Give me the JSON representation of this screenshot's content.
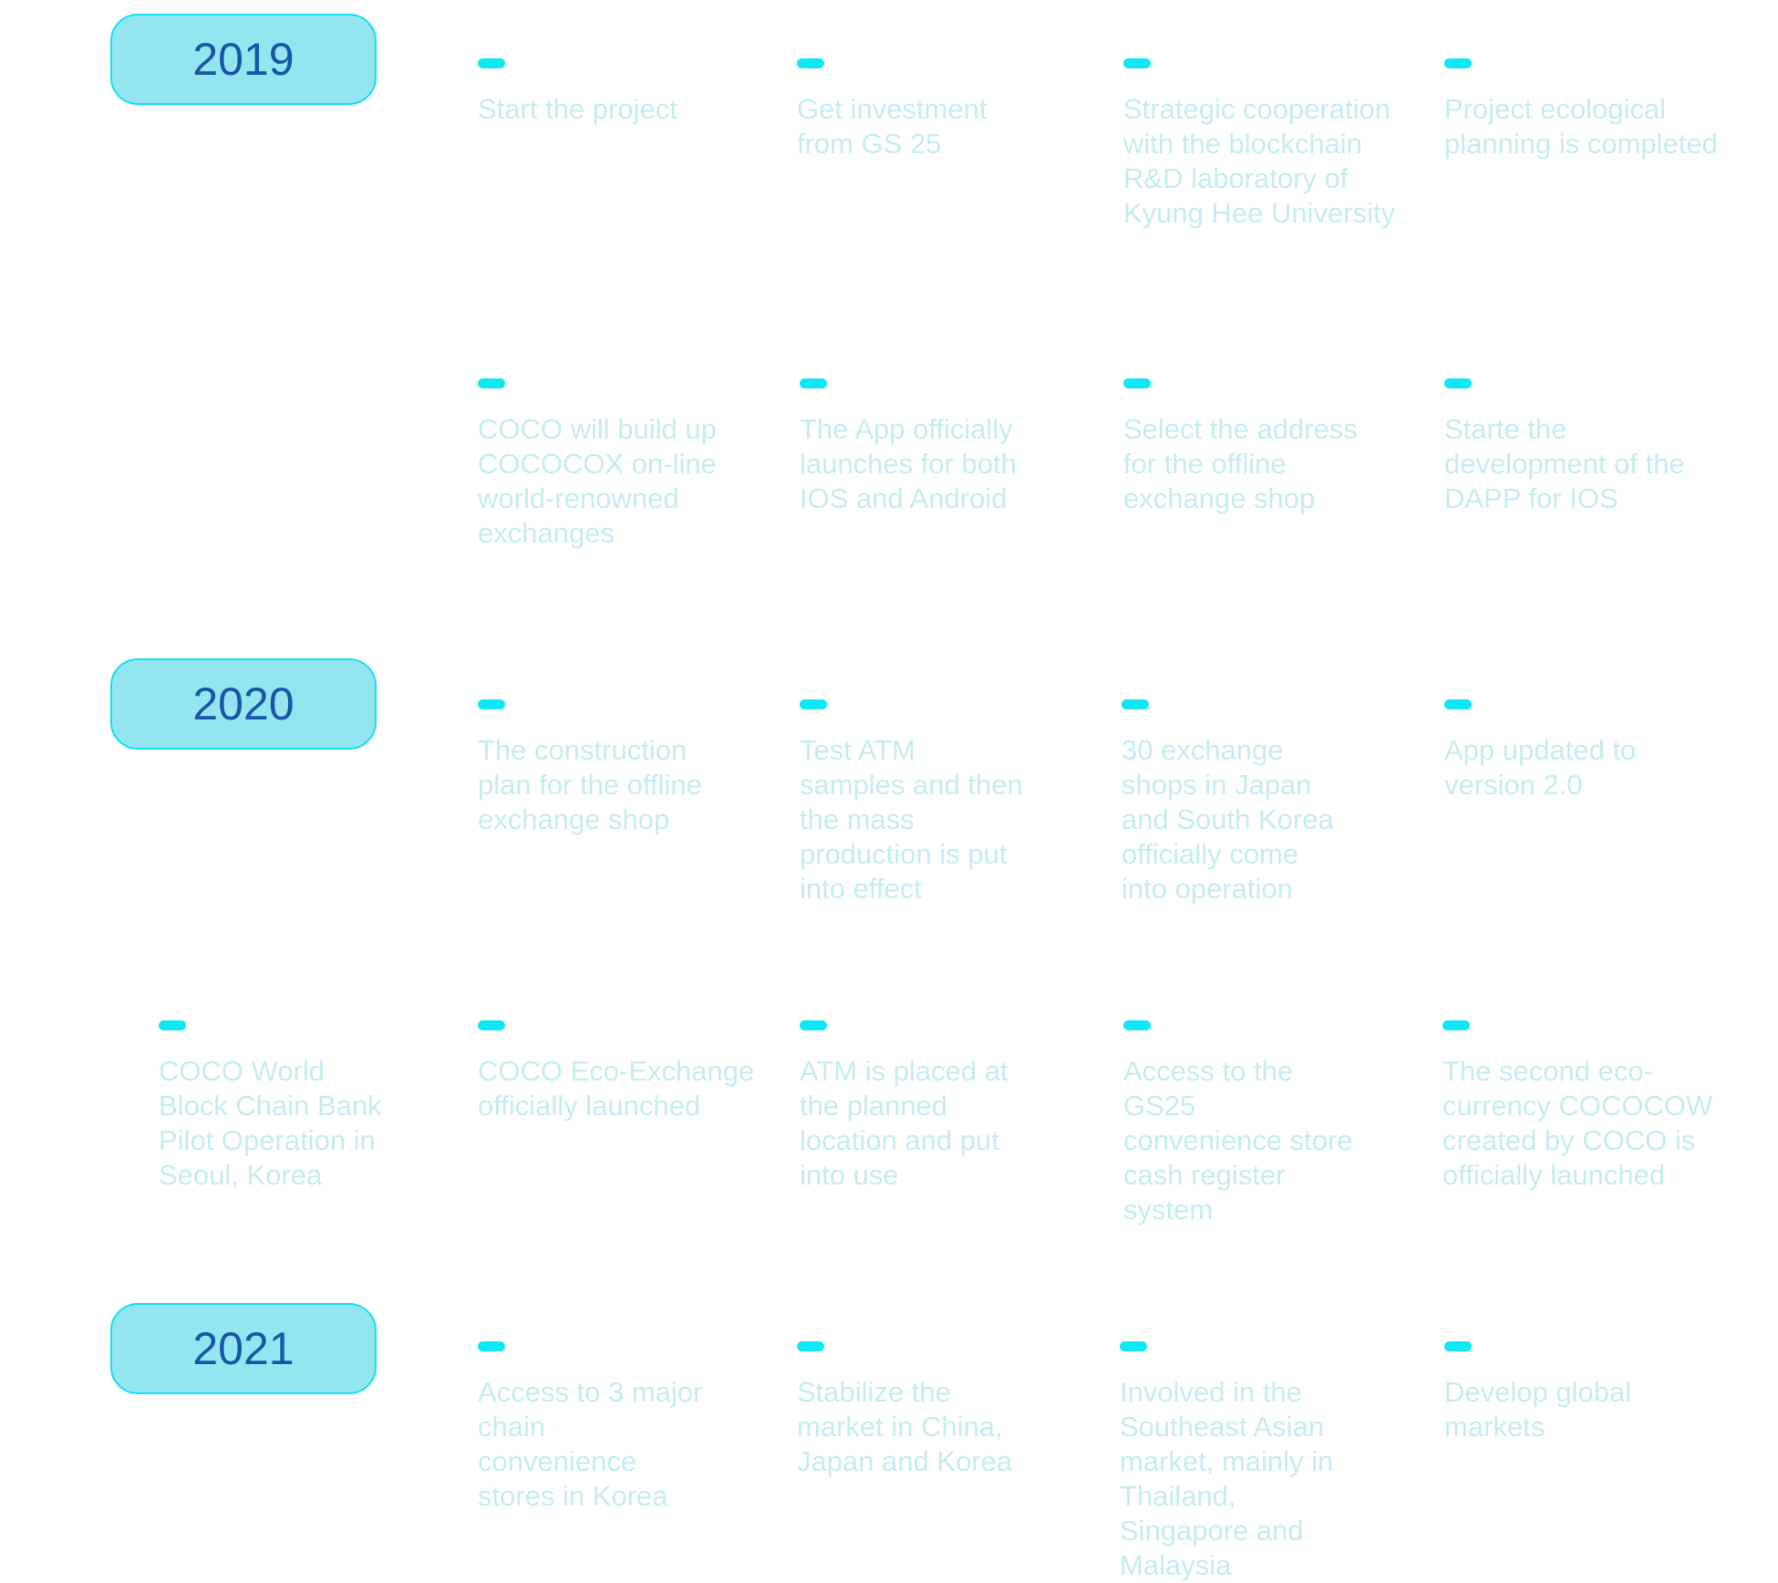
{
  "years": {
    "y2019": "2019",
    "y2020": "2020",
    "y2021": "2021"
  },
  "items": [
    "Start the project",
    "Get investment\nfrom GS 25",
    "Strategic cooperation\nwith the blockchain\nR&D laboratory of\nKyung Hee University",
    "Project ecological\nplanning is completed",
    "COCO will build up\nCOCOCOX on-line\nworld-renowned\nexchanges",
    "The App officially\nlaunches for both\nIOS and Android",
    "Select the address\nfor the offline\nexchange shop",
    "Starte the\ndevelopment of the\nDAPP for IOS",
    "The construction\nplan for the offline\nexchange shop",
    "Test ATM\nsamples and then\nthe mass\nproduction is put\ninto effect",
    "30 exchange\nshops in Japan\nand South Korea\nofficially come\ninto operation",
    "App updated to\nversion 2.0",
    "COCO World\nBlock Chain Bank\nPilot Operation in\nSeoul, Korea",
    "COCO Eco-Exchange\nofficially launched",
    "ATM is placed at\nthe planned\nlocation and put\ninto use",
    "Access to the\nGS25\nconvenience store\ncash register\nsystem",
    "The second eco-\ncurrency COCOCOW\ncreated by COCO is\nofficially launched",
    "Access to 3 major\nchain\nconvenience\nstores in Korea",
    "Stabilize the\nmarket in China,\nJapan and Korea",
    "Involved in the\nSoutheast Asian\nmarket, mainly in\nThailand,\nSingapore and\nMalaysia",
    "Develop global\nmarkets"
  ]
}
